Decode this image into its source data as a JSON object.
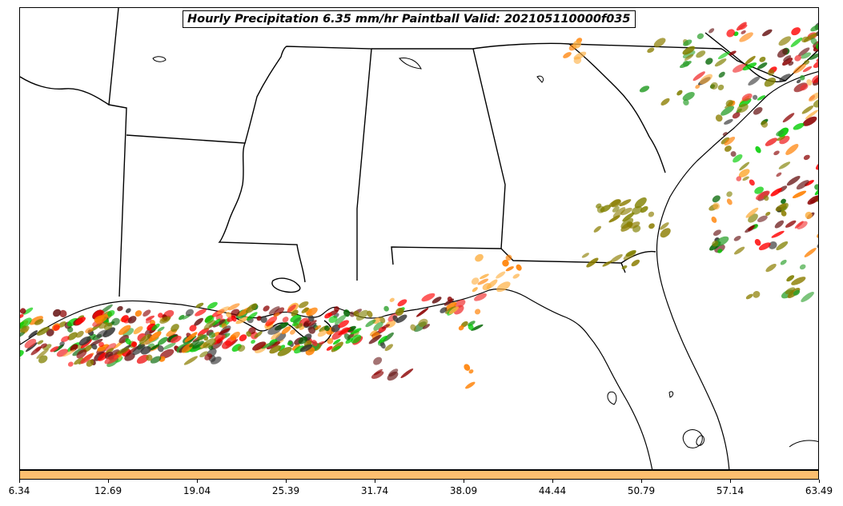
{
  "title": "Hourly Precipitation 6.35 mm/hr Paintball Valid: 202105110000f035",
  "colorbar": {
    "color": "#fdbf6f",
    "ticks": [
      "6.34",
      "12.69",
      "19.04",
      "25.39",
      "31.74",
      "38.09",
      "44.44",
      "50.79",
      "57.14",
      "63.49"
    ]
  },
  "paintball_colors": [
    "#ff0000",
    "#ff7f00",
    "#fdae3e",
    "#00cc00",
    "#2ca02c",
    "#006400",
    "#8b7d00",
    "#808000",
    "#6b1a1a",
    "#8b0000",
    "#333333",
    "#f03030"
  ]
}
